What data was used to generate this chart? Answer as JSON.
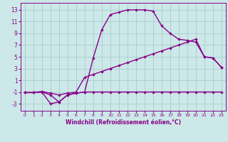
{
  "xlabel": "Windchill (Refroidissement éolien,°C)",
  "bg_color": "#cce8e8",
  "grid_color": "#aacccc",
  "line_color": "#880088",
  "xlim": [
    -0.5,
    23.5
  ],
  "ylim": [
    -4.2,
    14.2
  ],
  "xticks": [
    0,
    1,
    2,
    3,
    4,
    5,
    6,
    7,
    8,
    9,
    10,
    11,
    12,
    13,
    14,
    15,
    16,
    17,
    18,
    19,
    20,
    21,
    22,
    23
  ],
  "yticks": [
    -3,
    -1,
    1,
    3,
    5,
    7,
    9,
    11,
    13
  ],
  "line1_x": [
    0,
    1,
    2,
    3,
    4,
    5,
    6,
    7,
    8,
    9,
    10,
    11,
    12,
    13,
    14,
    15,
    16,
    17,
    18,
    19,
    20,
    21,
    22,
    23
  ],
  "line1_y": [
    -1.1,
    -1.1,
    -1.0,
    -3.0,
    -2.7,
    -1.5,
    -1.2,
    -1.0,
    -1.0,
    -1.0,
    -1.0,
    -1.0,
    -1.0,
    -1.0,
    -1.0,
    -1.0,
    -1.0,
    -1.0,
    -1.0,
    -1.0,
    -1.0,
    -1.0,
    -1.0,
    -1.0
  ],
  "line2_x": [
    0,
    1,
    2,
    3,
    4,
    5,
    6,
    7,
    8,
    9,
    10,
    11,
    12,
    13,
    14,
    15,
    16,
    17,
    18,
    19,
    20,
    21,
    22,
    23
  ],
  "line2_y": [
    -1.1,
    -1.1,
    -1.0,
    -1.5,
    -2.7,
    -1.5,
    -1.2,
    -1.0,
    4.8,
    9.6,
    12.2,
    12.6,
    13.0,
    13.0,
    13.0,
    12.8,
    10.3,
    9.0,
    8.0,
    7.8,
    7.5,
    5.0,
    4.8,
    3.2
  ],
  "line3_x": [
    0,
    1,
    2,
    3,
    4,
    5,
    6,
    7,
    8,
    9,
    10,
    11,
    12,
    13,
    14,
    15,
    16,
    17,
    18,
    19,
    20,
    21,
    22,
    23
  ],
  "line3_y": [
    -1.1,
    -1.1,
    -0.9,
    -1.2,
    -1.5,
    -1.2,
    -1.0,
    1.5,
    2.0,
    2.5,
    3.0,
    3.5,
    4.0,
    4.5,
    5.0,
    5.5,
    6.0,
    6.5,
    7.0,
    7.5,
    8.0,
    5.0,
    4.8,
    3.2
  ],
  "marker": "D",
  "marker_size": 2.2,
  "linewidth": 1.0,
  "xlabel_fontsize": 5.5,
  "tick_fontsize_x": 4.5,
  "tick_fontsize_y": 5.5
}
